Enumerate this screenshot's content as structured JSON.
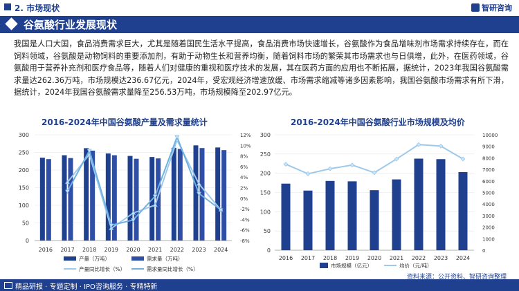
{
  "header": {
    "section": "2. 市场现状",
    "brand": "智研咨询"
  },
  "title": "谷氨酸行业发展现状",
  "paragraph": "我国是人口大国，食品消费需求巨大，尤其是随着国民生活水平提高，食品消费市场快速增长，谷氨酸作为食品增味剂市场需求持续存在，而在饲料领域，谷氨酸是动物饲料的重要添加剂，有助于动物生长和营养均衡，随着饲料市场的繁荣其市场需求也与日俱增，此外，在医药领域，谷氨酸用于营养补充剂和医疗食品等，随着人们对健康的重视和医疗技术的发展，其在医药方面的应用也不断拓展，据统计，2023年我国谷氨酸需求量达262.36万吨，市场规模达236.67亿元，2024年，受宏观经济增速放缓、市场需求缩减等诸多因素影响，我国谷氨酸市场需求有所下滑，据统计，2024年我国谷氨酸需求量降至256.53万吨，市场规模降至202.97亿元。",
  "footer": "精品研报 · 专题定制 · IPO咨询服务 · 专精特新",
  "source": "资料来源：公开资料、智研咨询整理",
  "colors": {
    "navy": "#1f3f8f",
    "bar_light": "#2f4fa6",
    "line_light": "#9ec9ea",
    "line_mid": "#5aa0d8"
  },
  "chart_data": [
    {
      "type": "bar",
      "title": "2016-2024年中国谷氨酸产量及需求量统计",
      "categories": [
        "2016",
        "2017",
        "2018",
        "2019",
        "2020",
        "2021",
        "2022",
        "2023",
        "2024"
      ],
      "series": [
        {
          "name": "产量（万吨）",
          "values": [
            235,
            242,
            262,
            247,
            240,
            237,
            263,
            270,
            264
          ]
        },
        {
          "name": "需求量（万吨）",
          "values": [
            231,
            234,
            255,
            242,
            232,
            233,
            260,
            262.36,
            256.53
          ]
        },
        {
          "name": "产量同比增长（%）",
          "axis": "right",
          "values": [
            null,
            3.0,
            8.3,
            -5.7,
            -2.8,
            -1.3,
            11.0,
            2.7,
            -2.2
          ]
        },
        {
          "name": "需求量同比增长（%）",
          "axis": "right",
          "values": [
            null,
            1.3,
            9.0,
            -5.1,
            -4.1,
            0.4,
            11.6,
            0.9,
            -2.2
          ]
        }
      ],
      "y_left": {
        "min": 0,
        "max": 300,
        "ticks": [
          "0",
          "50",
          "100",
          "150",
          "200",
          "250",
          "300"
        ]
      },
      "y_right": {
        "min": -8,
        "max": 12,
        "ticks": [
          "-8%",
          "-6%",
          "-4%",
          "-2%",
          "0%",
          "2%",
          "4%",
          "6%",
          "8%",
          "10%",
          "12%"
        ]
      },
      "legend": [
        "产量（万吨）",
        "需求量（万吨）",
        "产量同比增长（%）",
        "需求量同比增长（%）"
      ]
    },
    {
      "type": "bar",
      "title": "2016-2024年中国谷氨酸行业市场规模及均价",
      "categories": [
        "2016",
        "2017",
        "2018",
        "2019",
        "2020",
        "2021",
        "2022",
        "2023",
        "2024"
      ],
      "series": [
        {
          "name": "市场规模（亿元）",
          "values": [
            173,
            155,
            180,
            179,
            156,
            184,
            238,
            236.67,
            202.97
          ]
        },
        {
          "name": "均价（元/吨）",
          "axis": "right",
          "values": [
            7450,
            6620,
            7060,
            7380,
            6720,
            7900,
            9150,
            9020,
            7910
          ]
        }
      ],
      "y_left": {
        "min": 0,
        "max": 300,
        "ticks": [
          "0",
          "50",
          "100",
          "150",
          "200",
          "250",
          "300"
        ]
      },
      "y_right": {
        "min": 0,
        "max": 10000,
        "ticks": [
          "0",
          "1000",
          "2000",
          "3000",
          "4000",
          "5000",
          "6000",
          "7000",
          "8000",
          "9000",
          "10000"
        ]
      },
      "legend": [
        "市场规模（亿元）",
        "均价（元/吨）"
      ]
    }
  ]
}
